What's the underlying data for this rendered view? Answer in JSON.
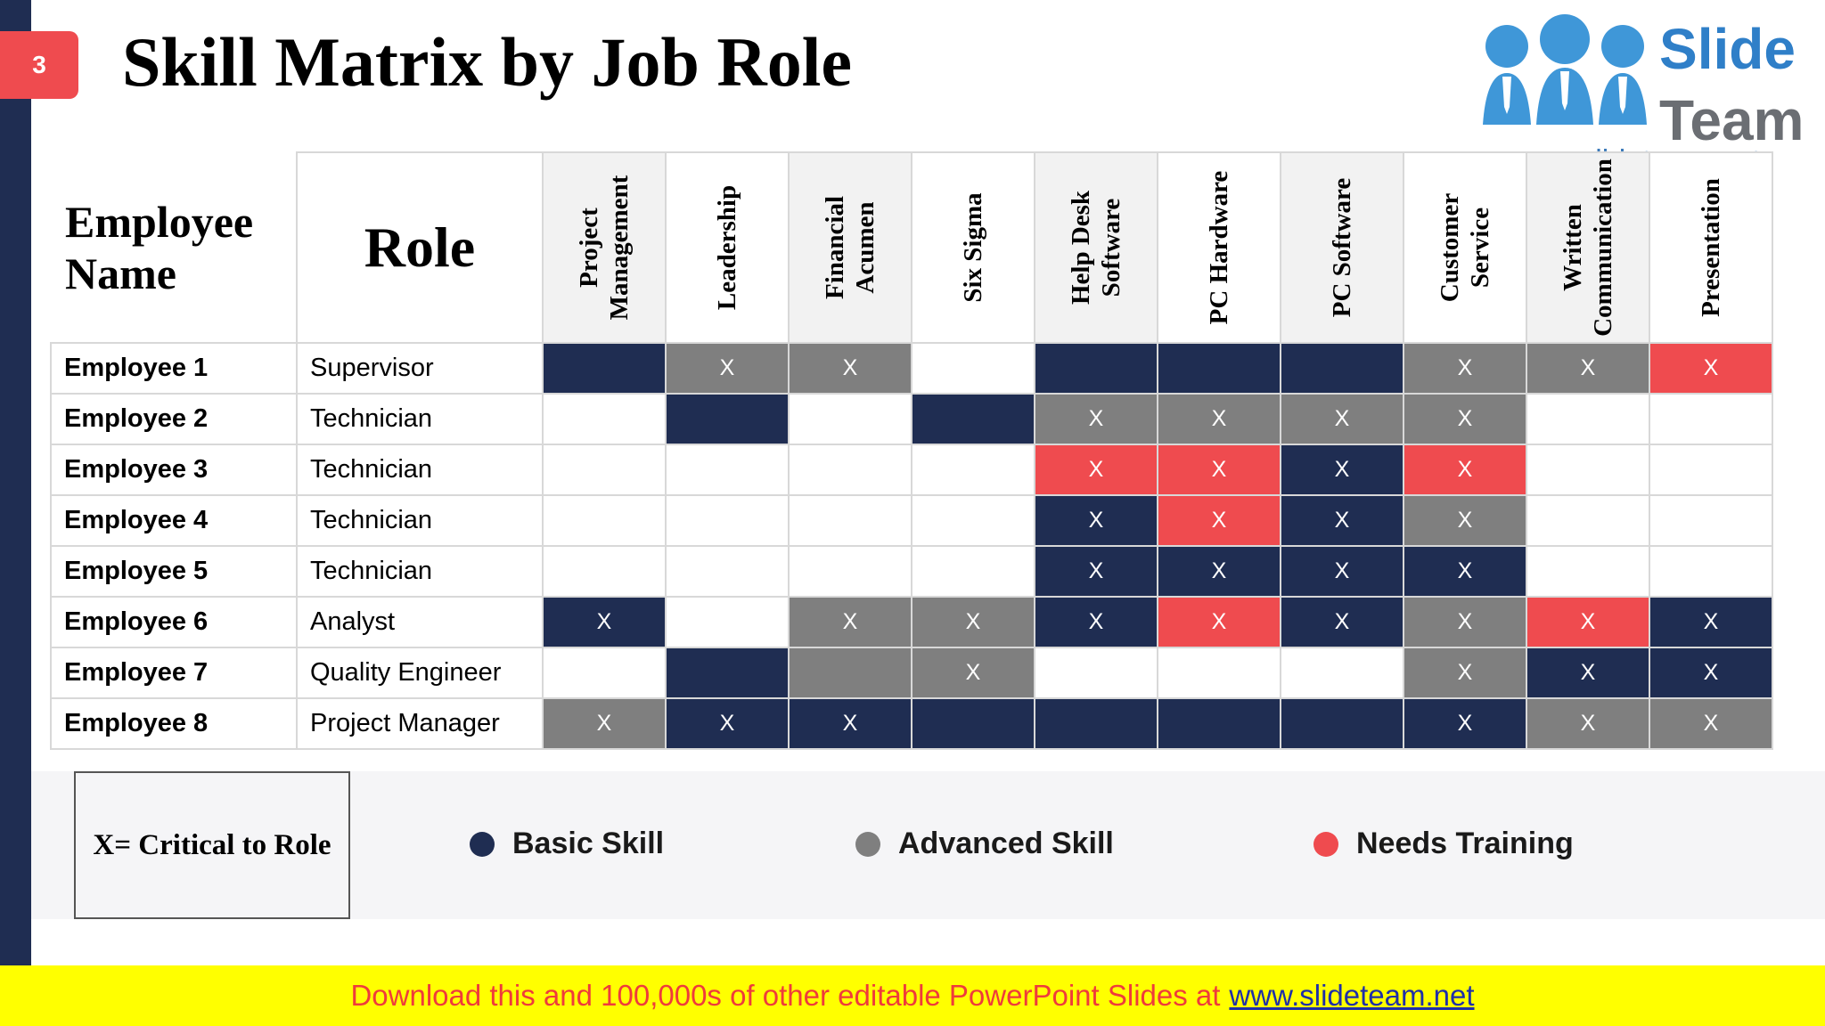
{
  "slide": {
    "number": "3",
    "title": "Skill Matrix by Job Role"
  },
  "logo": {
    "word1": "Slide",
    "word2": "Team",
    "url": "www.slideteam.net"
  },
  "table": {
    "employee_header": "Employee Name",
    "role_header": "Role",
    "skills": [
      "Project Management",
      "Leadership",
      "Financial Acumen",
      "Six Sigma",
      "Help Desk Software",
      "PC Hardware",
      "PC Software",
      "Customer Service",
      "Written Communication",
      "Presentation"
    ],
    "rows": [
      {
        "name": "Employee 1",
        "role": "Supervisor",
        "cells": [
          [
            "basic",
            ""
          ],
          [
            "advanced",
            "X"
          ],
          [
            "advanced",
            "X"
          ],
          [
            "empty",
            ""
          ],
          [
            "basic",
            ""
          ],
          [
            "basic",
            ""
          ],
          [
            "basic",
            ""
          ],
          [
            "advanced",
            "X"
          ],
          [
            "advanced",
            "X"
          ],
          [
            "needs",
            "X"
          ]
        ]
      },
      {
        "name": "Employee 2",
        "role": "Technician",
        "cells": [
          [
            "empty",
            ""
          ],
          [
            "basic",
            ""
          ],
          [
            "empty",
            ""
          ],
          [
            "basic",
            ""
          ],
          [
            "advanced",
            "X"
          ],
          [
            "advanced",
            "X"
          ],
          [
            "advanced",
            "X"
          ],
          [
            "advanced",
            "X"
          ],
          [
            "empty",
            ""
          ],
          [
            "empty",
            ""
          ]
        ]
      },
      {
        "name": "Employee 3",
        "role": "Technician",
        "cells": [
          [
            "empty",
            ""
          ],
          [
            "empty",
            ""
          ],
          [
            "empty",
            ""
          ],
          [
            "empty",
            ""
          ],
          [
            "needs",
            "X"
          ],
          [
            "needs",
            "X"
          ],
          [
            "basic",
            "X"
          ],
          [
            "needs",
            "X"
          ],
          [
            "empty",
            ""
          ],
          [
            "empty",
            ""
          ]
        ]
      },
      {
        "name": "Employee 4",
        "role": "Technician",
        "cells": [
          [
            "empty",
            ""
          ],
          [
            "empty",
            ""
          ],
          [
            "empty",
            ""
          ],
          [
            "empty",
            ""
          ],
          [
            "basic",
            "X"
          ],
          [
            "needs",
            "X"
          ],
          [
            "basic",
            "X"
          ],
          [
            "advanced",
            "X"
          ],
          [
            "empty",
            ""
          ],
          [
            "empty",
            ""
          ]
        ]
      },
      {
        "name": "Employee 5",
        "role": "Technician",
        "cells": [
          [
            "empty",
            ""
          ],
          [
            "empty",
            ""
          ],
          [
            "empty",
            ""
          ],
          [
            "empty",
            ""
          ],
          [
            "basic",
            "X"
          ],
          [
            "basic",
            "X"
          ],
          [
            "basic",
            "X"
          ],
          [
            "basic",
            "X"
          ],
          [
            "empty",
            ""
          ],
          [
            "empty",
            ""
          ]
        ]
      },
      {
        "name": "Employee 6",
        "role": "Analyst",
        "cells": [
          [
            "basic",
            "X"
          ],
          [
            "empty",
            ""
          ],
          [
            "advanced",
            "X"
          ],
          [
            "advanced",
            "X"
          ],
          [
            "basic",
            "X"
          ],
          [
            "needs",
            "X"
          ],
          [
            "basic",
            "X"
          ],
          [
            "advanced",
            "X"
          ],
          [
            "needs",
            "X"
          ],
          [
            "basic",
            "X"
          ]
        ]
      },
      {
        "name": "Employee 7",
        "role": "Quality Engineer",
        "cells": [
          [
            "empty",
            ""
          ],
          [
            "basic",
            ""
          ],
          [
            "advanced",
            ""
          ],
          [
            "advanced",
            "X"
          ],
          [
            "empty",
            ""
          ],
          [
            "empty",
            ""
          ],
          [
            "empty",
            ""
          ],
          [
            "advanced",
            "X"
          ],
          [
            "basic",
            "X"
          ],
          [
            "basic",
            "X"
          ]
        ]
      },
      {
        "name": "Employee 8",
        "role": "Project Manager",
        "cells": [
          [
            "advanced",
            "X"
          ],
          [
            "basic",
            "X"
          ],
          [
            "basic",
            "X"
          ],
          [
            "basic",
            ""
          ],
          [
            "basic",
            ""
          ],
          [
            "basic",
            ""
          ],
          [
            "basic",
            ""
          ],
          [
            "basic",
            "X"
          ],
          [
            "advanced",
            "X"
          ],
          [
            "advanced",
            "X"
          ]
        ]
      }
    ]
  },
  "legend": {
    "critical_note": "X= Critical to Role",
    "items": [
      {
        "label": "Basic Skill",
        "color": "#1f2d52"
      },
      {
        "label": "Advanced Skill",
        "color": "#7f7f7f"
      },
      {
        "label": "Needs Training",
        "color": "#ef4b4f"
      }
    ]
  },
  "footer": {
    "text": "Download this and 100,000s of other editable PowerPoint Slides at",
    "link": "www.slideteam.net"
  }
}
